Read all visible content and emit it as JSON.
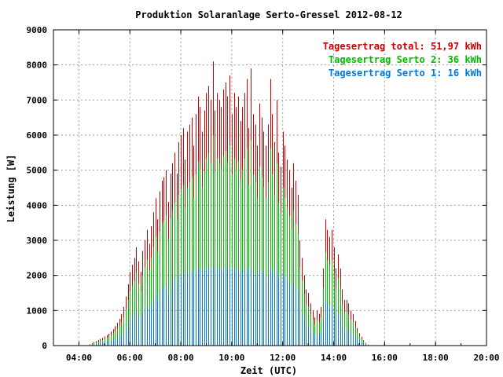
{
  "chart_data": {
    "type": "bar",
    "title": "Produktion Solaranlage Serto-Gressel 2012-08-12",
    "xlabel": "Zeit (UTC)",
    "ylabel": "Leistung [W]",
    "ylim": [
      0,
      9000
    ],
    "xlim_hours": [
      3,
      20
    ],
    "yticks": [
      "0",
      "1000",
      "2000",
      "3000",
      "4000",
      "5000",
      "6000",
      "7000",
      "8000",
      "9000"
    ],
    "xticks": [
      "04:00",
      "06:00",
      "08:00",
      "10:00",
      "12:00",
      "14:00",
      "16:00",
      "18:00",
      "20:00"
    ],
    "grid": true,
    "legend_position": "top-right",
    "legend": [
      {
        "label": "Tagesertrag total: 51,97 kWh",
        "color": "#cc0000"
      },
      {
        "label": "Tagesertrag Serto 2: 36 kWh",
        "color": "#00bb00"
      },
      {
        "label": "Tagesertrag Serto 1: 16 kWh",
        "color": "#0077dd"
      }
    ],
    "interval_minutes": 5,
    "start_time": "04:25",
    "series": [
      {
        "name": "Tagesertrag total: 51,97 kWh",
        "color": "#cc0000",
        "values": [
          40,
          70,
          100,
          130,
          160,
          190,
          220,
          260,
          300,
          340,
          400,
          470,
          550,
          650,
          760,
          900,
          1100,
          1400,
          1750,
          2100,
          2300,
          2500,
          2800,
          2400,
          2100,
          2700,
          3000,
          3300,
          2900,
          3400,
          3800,
          4200,
          3600,
          4400,
          4700,
          4800,
          5000,
          4100,
          4900,
          5200,
          5500,
          4900,
          5800,
          6000,
          6200,
          5300,
          6100,
          6300,
          6500,
          5700,
          6600,
          7100,
          6800,
          6100,
          6700,
          7200,
          7400,
          7000,
          8100,
          6700,
          7200,
          7000,
          6800,
          7300,
          7500,
          7100,
          7700,
          6600,
          7200,
          6800,
          7100,
          6400,
          6800,
          7200,
          7600,
          6200,
          7900,
          6600,
          6300,
          5700,
          6900,
          6500,
          6100,
          5700,
          6300,
          7600,
          6600,
          5800,
          7000,
          5500,
          5100,
          6100,
          5700,
          5300,
          5000,
          4500,
          5200,
          4700,
          4300,
          3000,
          2500,
          2000,
          1600,
          1500,
          1200,
          1000,
          800,
          1000,
          900,
          1100,
          2200,
          3600,
          3300,
          3100,
          3300,
          2800,
          2200,
          2600,
          2200,
          1600,
          1300,
          1300,
          1200,
          1000,
          900,
          700,
          500,
          350,
          250,
          150,
          80,
          30
        ]
      },
      {
        "name": "Tagesertrag Serto 2: 36 kWh",
        "color": "#00bb00",
        "values": [
          25,
          50,
          70,
          90,
          115,
          140,
          160,
          190,
          220,
          250,
          295,
          345,
          405,
          480,
          560,
          665,
          810,
          1030,
          1290,
          1550,
          1700,
          1850,
          2070,
          1770,
          1550,
          2000,
          2220,
          2440,
          2140,
          2510,
          2810,
          3100,
          2660,
          3250,
          3470,
          3550,
          3700,
          3030,
          3620,
          3840,
          4070,
          3620,
          4290,
          4440,
          4580,
          3920,
          4510,
          4660,
          4810,
          4210,
          4880,
          5250,
          5030,
          4510,
          4960,
          5330,
          5470,
          5180,
          5990,
          4960,
          5330,
          5180,
          5030,
          5400,
          5550,
          5250,
          5700,
          4880,
          5330,
          5030,
          5250,
          4730,
          5030,
          5330,
          5620,
          4580,
          5840,
          4880,
          4660,
          4210,
          5100,
          4810,
          4510,
          4210,
          4660,
          5620,
          4880,
          4290,
          5180,
          4070,
          3770,
          4510,
          4210,
          3920,
          3700,
          3330,
          3850,
          3470,
          3180,
          2220,
          1850,
          1480,
          1180,
          1110,
          890,
          740,
          590,
          740,
          670,
          810,
          1630,
          2660,
          2440,
          2290,
          2440,
          2070,
          1630,
          1920,
          1630,
          1180,
          960,
          960,
          890,
          740,
          670,
          520,
          370,
          260,
          185,
          110,
          60,
          22
        ]
      },
      {
        "name": "Tagesertrag Serto 1: 16 kWh",
        "color": "#0077dd",
        "values": [
          15,
          25,
          35,
          45,
          55,
          70,
          80,
          90,
          110,
          120,
          145,
          165,
          195,
          230,
          270,
          315,
          380,
          490,
          610,
          740,
          800,
          880,
          980,
          840,
          740,
          950,
          1060,
          1160,
          1020,
          1190,
          1330,
          1470,
          1260,
          1540,
          1650,
          1680,
          1750,
          1440,
          1720,
          1820,
          1930,
          1720,
          2000,
          2050,
          2100,
          1870,
          2080,
          2100,
          2150,
          1980,
          2150,
          2200,
          2180,
          2050,
          2150,
          2200,
          2220,
          2180,
          2250,
          2150,
          2200,
          2180,
          2150,
          2200,
          2230,
          2180,
          2250,
          2100,
          2200,
          2150,
          2180,
          2080,
          2150,
          2200,
          2220,
          2050,
          2230,
          2100,
          2050,
          1940,
          2150,
          2080,
          2050,
          1940,
          2050,
          2200,
          2080,
          1960,
          2120,
          1920,
          1790,
          2050,
          1960,
          1850,
          1750,
          1580,
          1820,
          1650,
          1510,
          1050,
          880,
          700,
          560,
          530,
          420,
          350,
          280,
          350,
          320,
          380,
          770,
          1260,
          1160,
          1080,
          1160,
          980,
          770,
          910,
          770,
          560,
          460,
          460,
          420,
          350,
          320,
          250,
          175,
          125,
          90,
          55,
          30,
          10
        ]
      }
    ]
  }
}
